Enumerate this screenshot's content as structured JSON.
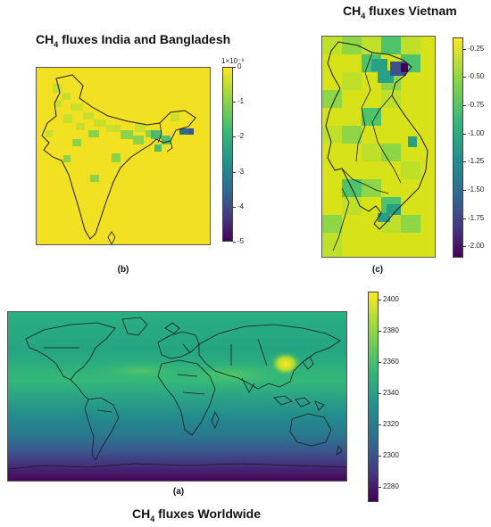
{
  "figure": {
    "panel_b": {
      "title_prefix": "CH",
      "title_sub": "4",
      "title_suffix": " fluxes India and Bangladesh",
      "caption": "(b)",
      "colorbar_exponent": "1×10⁻⁹",
      "colormap": "viridis"
    },
    "panel_c": {
      "title_prefix": "CH",
      "title_sub": "4",
      "title_suffix": " fluxes Vietnam",
      "caption": "(c)",
      "colormap": "viridis"
    },
    "panel_a": {
      "title_prefix": "CH",
      "title_sub": "4",
      "title_suffix": " fluxes Worldwide",
      "caption": "(a)",
      "colormap": "viridis"
    },
    "colors": {
      "viridis_yellow": "#f5e11d",
      "viridis_green": "#21908d",
      "viridis_purple": "#440154",
      "coastline": "#1a1a1a"
    }
  },
  "chart_data": [
    {
      "type": "heatmap",
      "panel": "b",
      "title": "CH4 fluxes India and Bangladesh",
      "colorbar": {
        "min": -5,
        "max": 0,
        "scale_label": "1×10⁻⁹",
        "ticks": [
          0,
          -1,
          -2,
          -3,
          -4,
          -5
        ],
        "tick_labels": [
          "0",
          "-1",
          "-2",
          "-3",
          "-4",
          "-5"
        ]
      },
      "notes": [
        "Most grid cells near 0",
        "Indo-Gangetic plain about -1",
        "Hotspot in Bangladesh about -3"
      ]
    },
    {
      "type": "heatmap",
      "panel": "c",
      "title": "CH4 fluxes Vietnam",
      "colorbar": {
        "min": -2.1,
        "max": -0.15,
        "ticks": [
          -0.25,
          -0.5,
          -0.75,
          -1.0,
          -1.25,
          -1.5,
          -1.75,
          -2.0
        ],
        "tick_labels": [
          "-0.25",
          "-0.50",
          "-0.75",
          "-1.00",
          "-1.25",
          "-1.50",
          "-1.75",
          "-2.00"
        ]
      },
      "notes": [
        "Red River delta minimum about -2.0",
        "Mekong delta about -1.4"
      ]
    },
    {
      "type": "heatmap",
      "panel": "a",
      "title": "CH4 fluxes Worldwide",
      "colorbar": {
        "min": 2270,
        "max": 2405,
        "ticks": [
          2280,
          2300,
          2320,
          2340,
          2360,
          2380,
          2400
        ],
        "tick_labels": [
          "2280",
          "2300",
          "2320",
          "2340",
          "2360",
          "2380",
          "2400"
        ]
      },
      "notes": [
        "Northern hemisphere about 2360",
        "Equatorial band about 2340",
        "Southern ocean about 2300",
        "Antarctic coast about 2280",
        "East China hotspot about 2400"
      ]
    }
  ]
}
